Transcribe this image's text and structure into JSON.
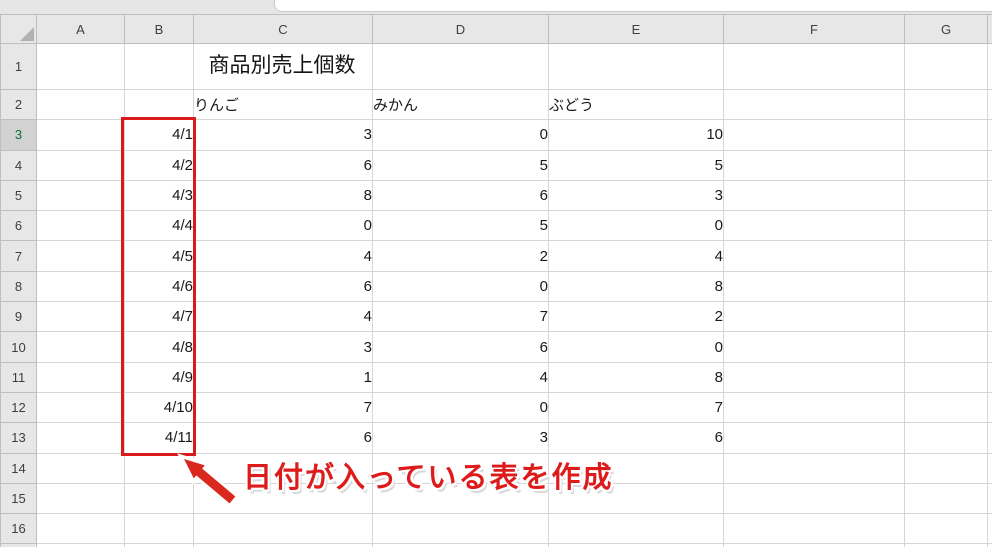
{
  "sheet": {
    "title": "商品別売上個数",
    "column_headers": [
      "A",
      "B",
      "C",
      "D",
      "E",
      "F",
      "G"
    ],
    "row_headers": [
      "1",
      "2",
      "3",
      "4",
      "5",
      "6",
      "7",
      "8",
      "9",
      "10",
      "11",
      "12",
      "13",
      "14",
      "15",
      "16"
    ],
    "active_row": "3",
    "table": {
      "corner_cell": "",
      "products": [
        "りんご",
        "みかん",
        "ぶどう"
      ],
      "data_rows": [
        {
          "date": "4/1",
          "values": [
            3,
            0,
            10
          ]
        },
        {
          "date": "4/2",
          "values": [
            6,
            5,
            5
          ]
        },
        {
          "date": "4/3",
          "values": [
            8,
            6,
            3
          ]
        },
        {
          "date": "4/4",
          "values": [
            0,
            5,
            0
          ]
        },
        {
          "date": "4/5",
          "values": [
            4,
            2,
            4
          ]
        },
        {
          "date": "4/6",
          "values": [
            6,
            0,
            8
          ]
        },
        {
          "date": "4/7",
          "values": [
            4,
            7,
            2
          ]
        },
        {
          "date": "4/8",
          "values": [
            3,
            6,
            0
          ]
        },
        {
          "date": "4/9",
          "values": [
            1,
            4,
            8
          ]
        },
        {
          "date": "4/10",
          "values": [
            7,
            0,
            7
          ]
        },
        {
          "date": "4/11",
          "values": [
            6,
            3,
            6
          ]
        }
      ]
    }
  },
  "annotation": {
    "text": "日付が入っている表を作成",
    "red": "#d91a1a"
  },
  "colors": {
    "header_bg": "#e7e7e7",
    "cell_fill_gray": "#d9d9d9",
    "gridline": "#d6d6d6",
    "table_border": "#000000",
    "active_green": "#15854b",
    "annotation_red": "#dd1b1b"
  }
}
